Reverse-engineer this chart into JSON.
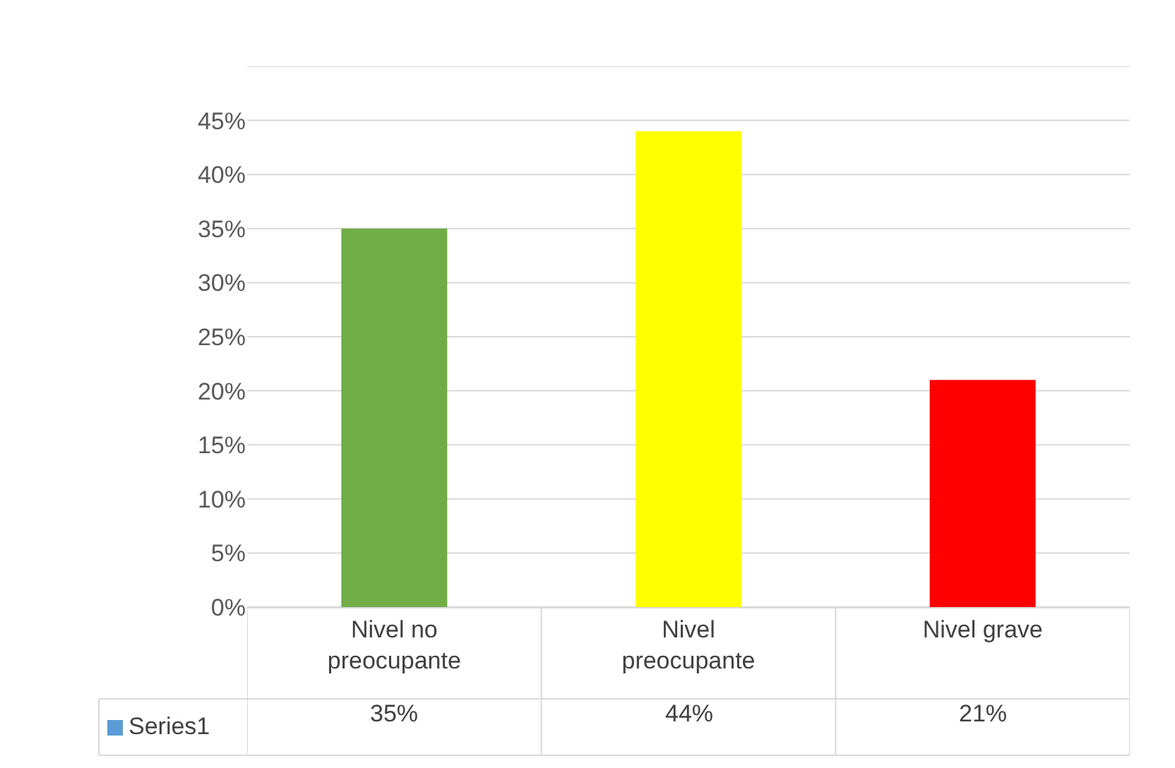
{
  "chart_data": {
    "type": "bar",
    "categories": [
      "Nivel no preocupante",
      "Nivel preocupante",
      "Nivel grave"
    ],
    "series": [
      {
        "name": "Series1",
        "color": "#5b9bd5",
        "colors": [
          "#70ad47",
          "#ffff00",
          "#ff0000"
        ],
        "values": [
          35,
          44,
          21
        ]
      }
    ],
    "ylim": [
      0,
      50
    ],
    "yticks": [
      {
        "value": 0,
        "label": "0%"
      },
      {
        "value": 5,
        "label": "5%"
      },
      {
        "value": 10,
        "label": "10%"
      },
      {
        "value": 15,
        "label": "15%"
      },
      {
        "value": 20,
        "label": "20%"
      },
      {
        "value": 25,
        "label": "25%"
      },
      {
        "value": 30,
        "label": "30%"
      },
      {
        "value": 35,
        "label": "35%"
      },
      {
        "value": 40,
        "label": "40%"
      },
      {
        "value": 45,
        "label": "45%"
      },
      {
        "value": 50,
        "label": null
      }
    ],
    "grid": true,
    "legend": "bottom left",
    "value_labels": [
      "35%",
      "44%",
      "21%"
    ]
  }
}
